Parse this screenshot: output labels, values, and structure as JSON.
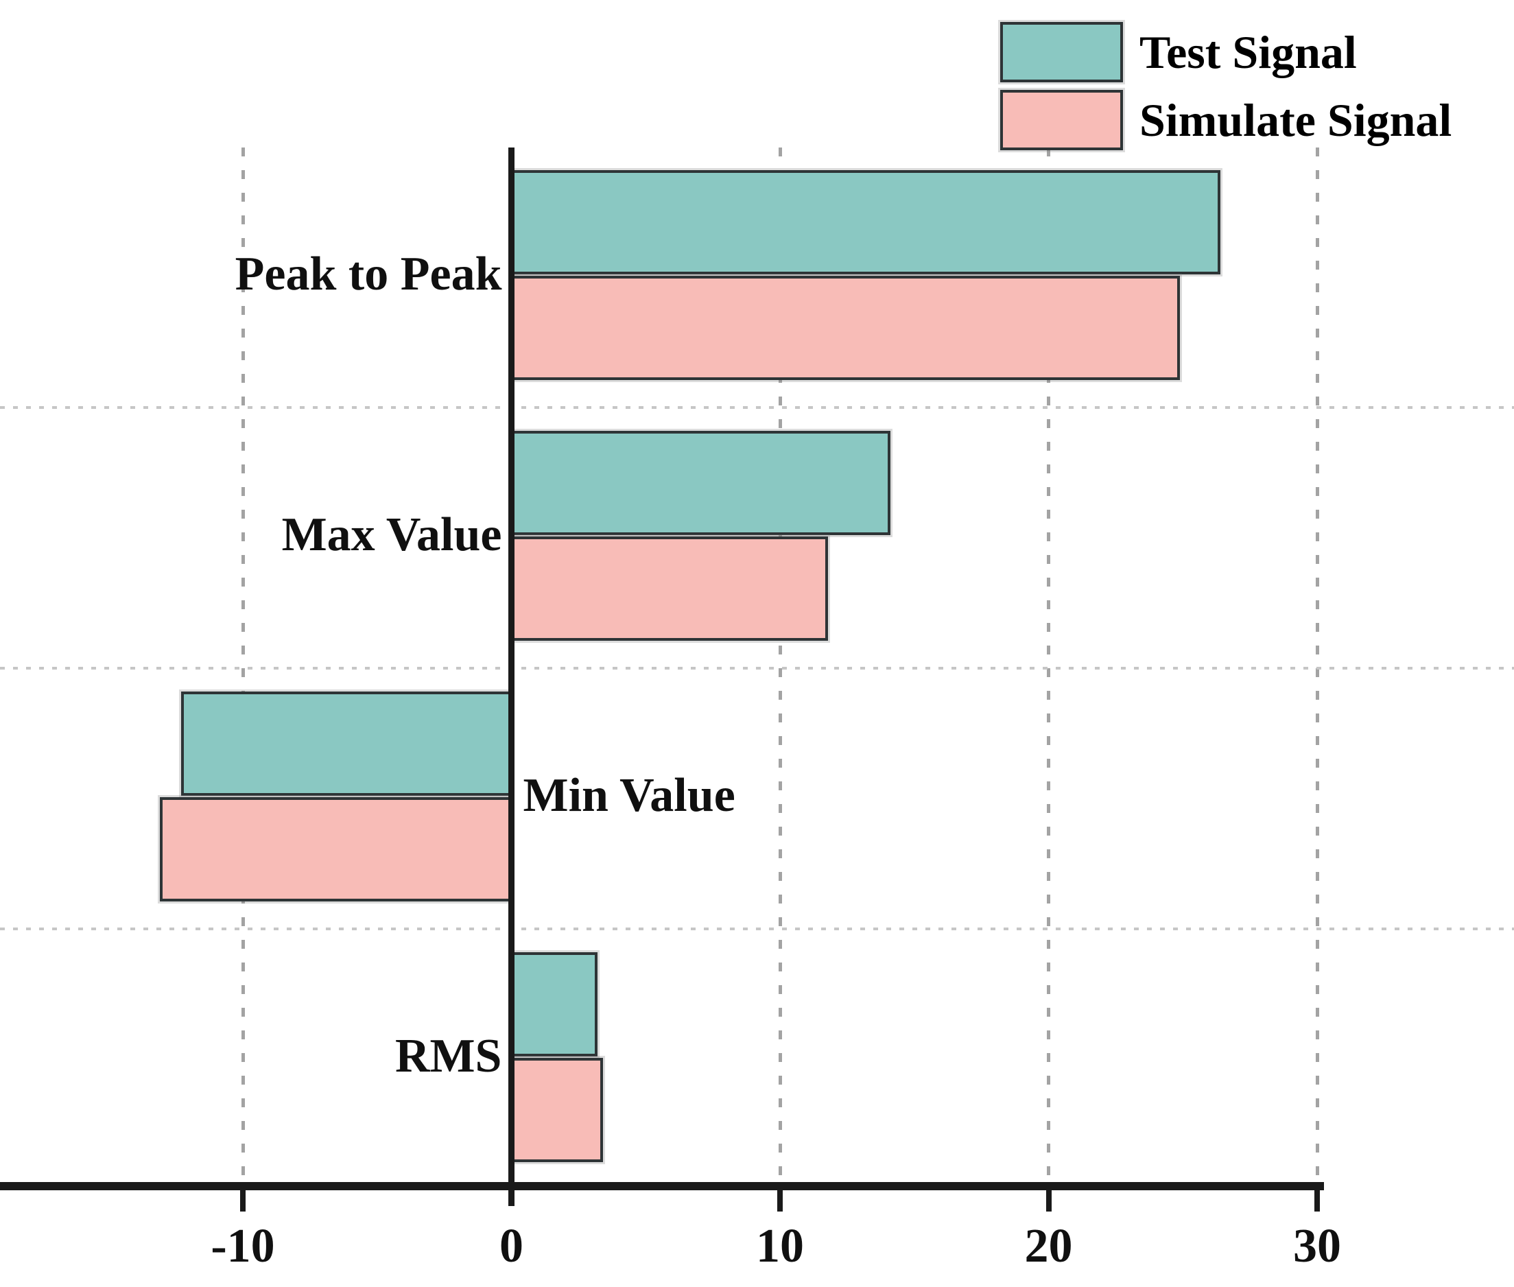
{
  "chart_data": {
    "type": "bar",
    "orientation": "horizontal",
    "title": "",
    "xlabel": "",
    "ylabel": "",
    "categories": [
      "Peak to Peak",
      "Max Value",
      "Min Value",
      "RMS"
    ],
    "series": [
      {
        "name": "Test Signal",
        "color": "#8AC8C2",
        "values": [
          26.4,
          14.1,
          -12.3,
          3.2
        ]
      },
      {
        "name": "Simulate Signal",
        "color": "#F8BCB7",
        "values": [
          24.9,
          11.8,
          -13.1,
          3.4
        ]
      }
    ],
    "x_axis": {
      "ticks": [
        -10,
        0,
        10,
        20,
        30
      ],
      "tick_labels": [
        "-10",
        "0",
        "10",
        "20",
        "30"
      ],
      "visible_range": [
        -19,
        30.3
      ],
      "zero_spine": true
    },
    "grid": {
      "vertical_dashed_ticks": [
        -10,
        10,
        20,
        30
      ],
      "horizontal_dotted_separators": true
    },
    "legend": {
      "position": "top-right"
    },
    "colors": {
      "bar_border": "#2E3436",
      "axis": "#1A1A1A",
      "gridline": "#A3A3A3",
      "separator": "#C6C6C6",
      "text": "#101010"
    }
  }
}
